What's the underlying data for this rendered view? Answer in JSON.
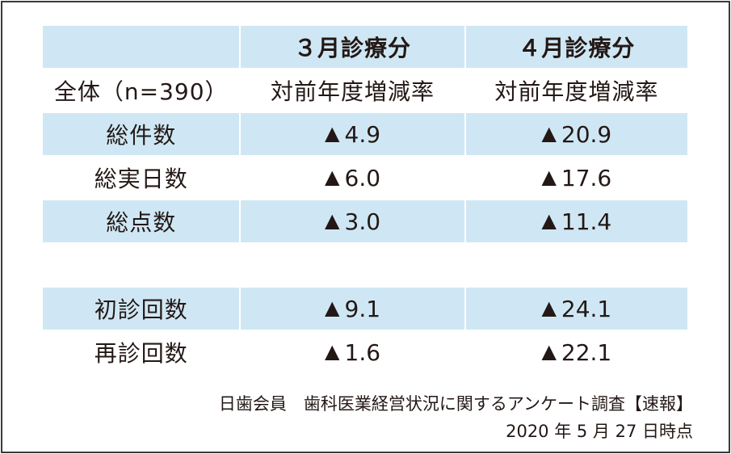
{
  "header": {
    "col_march": "３月診療分",
    "col_april": "４月診療分"
  },
  "subheader": {
    "label": "全体（n=390）",
    "col_march": "対前年度増減率",
    "col_april": "対前年度増減率"
  },
  "rows": [
    {
      "label": "総件数",
      "march": "4.9",
      "april": "20.9"
    },
    {
      "label": "総実日数",
      "march": "6.0",
      "april": "17.6"
    },
    {
      "label": "総点数",
      "march": "3.0",
      "april": "11.4"
    },
    {
      "label": "初診回数",
      "march": "9.1",
      "april": "24.1"
    },
    {
      "label": "再診回数",
      "march": "1.6",
      "april": "22.1"
    }
  ],
  "decrease_marker": "▲",
  "source": {
    "line1": "日歯会員　歯科医業経営状況に関するアンケート調査【速報】",
    "line2": "2020 年 5 月 27 日時点"
  },
  "colors": {
    "shade": "#cfe7f4",
    "text": "#231815",
    "border": "#3a3a3a"
  }
}
